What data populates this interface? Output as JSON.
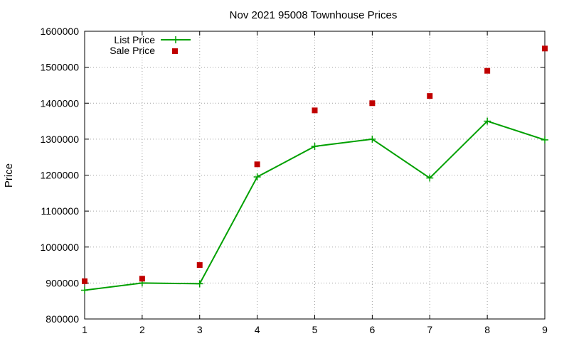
{
  "chart_data": {
    "type": "line",
    "title": "Nov 2021 95008 Townhouse Prices",
    "xlabel": "",
    "ylabel": "Price",
    "x": [
      1,
      2,
      3,
      4,
      5,
      6,
      7,
      8,
      9
    ],
    "xlim": [
      1,
      9
    ],
    "ylim": [
      800000,
      1600000
    ],
    "x_ticks": [
      "1",
      "2",
      "3",
      "4",
      "5",
      "6",
      "7",
      "8",
      "9"
    ],
    "y_ticks": [
      "800000",
      "900000",
      "1000000",
      "1100000",
      "1200000",
      "1300000",
      "1400000",
      "1500000",
      "1600000"
    ],
    "grid": true,
    "legend_position": "top-left",
    "series": [
      {
        "name": "List Price",
        "style": "line-with-plus-markers",
        "color": "#00a000",
        "values": [
          880000,
          900000,
          898000,
          1195000,
          1280000,
          1300000,
          1192000,
          1350000,
          1298000
        ]
      },
      {
        "name": "Sale Price",
        "style": "square-markers",
        "color": "#c00000",
        "values": [
          905000,
          912000,
          950000,
          1230000,
          1380000,
          1400000,
          1420000,
          1490000,
          1552000
        ]
      }
    ]
  }
}
